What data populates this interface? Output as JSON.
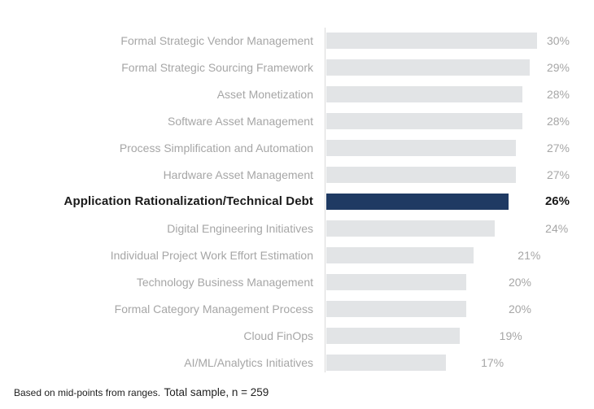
{
  "chart_data": {
    "type": "bar",
    "orientation": "horizontal",
    "title": "",
    "unit": "%",
    "categories": [
      "Formal Strategic Vendor Management",
      "Formal Strategic Sourcing Framework",
      "Asset Monetization",
      "Software Asset Management",
      "Process Simplification and Automation",
      "Hardware Asset Management",
      "Application Rationalization/Technical Debt",
      "Digital Engineering Initiatives",
      "Individual Project Work Effort Estimation",
      "Technology Business Management",
      "Formal Category Management Process",
      "Cloud FinOps",
      "AI/ML/Analytics Initiatives"
    ],
    "values": [
      30,
      29,
      28,
      28,
      27,
      27,
      26,
      24,
      21,
      20,
      20,
      19,
      17
    ],
    "value_labels": [
      "30%",
      "29%",
      "28%",
      "28%",
      "27%",
      "27%",
      "26%",
      "24%",
      "21%",
      "20%",
      "20%",
      "19%",
      "17%"
    ],
    "highlight_index": 6,
    "highlight_category": "Application Rationalization/Technical Debt",
    "grid": false,
    "legend": "none",
    "colors": {
      "background": "#ffffff",
      "bar": "#e2e4e6",
      "highlight_bar": "#1f3a63",
      "category_label": "#a6a6a6",
      "value_label": "#a6a6a6",
      "highlight_text": "#1a1a1a",
      "axis_line": "#d9d9d9"
    },
    "footnote": {
      "part1": "Based on mid-points from ranges.",
      "part2": "Total sample, n = 259"
    }
  }
}
